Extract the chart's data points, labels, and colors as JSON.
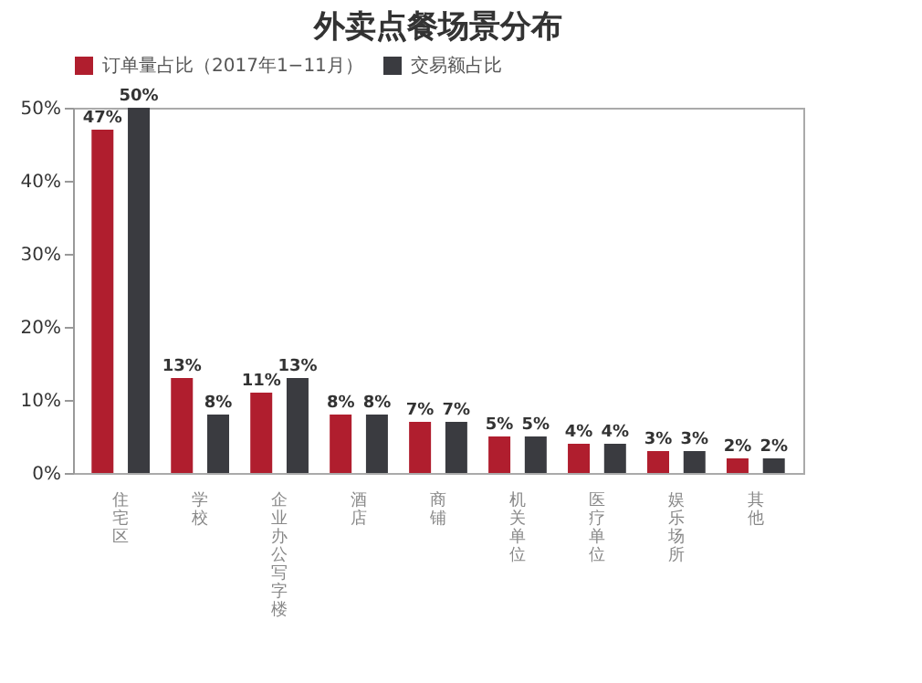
{
  "chart_data": {
    "type": "bar",
    "title": "外卖点餐场景分布",
    "categories": [
      "住宅区",
      "学校",
      "企业办公写字楼",
      "酒店",
      "商铺",
      "机关单位",
      "医疗单位",
      "娱乐场所",
      "其他"
    ],
    "series": [
      {
        "name": "订单量占比（2017年1−11月）",
        "color": "#b01e2e",
        "values": [
          47,
          13,
          11,
          8,
          7,
          5,
          4,
          3,
          2
        ],
        "value_labels": [
          "47%",
          "13%",
          "11%",
          "8%",
          "7%",
          "5%",
          "4%",
          "3%",
          "2%"
        ]
      },
      {
        "name": "交易额占比",
        "color": "#3a3b40",
        "values": [
          50,
          8,
          13,
          8,
          7,
          5,
          4,
          3,
          2
        ],
        "value_labels": [
          "50%",
          "8%",
          "13%",
          "8%",
          "7%",
          "5%",
          "4%",
          "3%",
          "2%"
        ]
      }
    ],
    "ylim": [
      0,
      50
    ],
    "yticks": [
      {
        "value": 0,
        "label": "0%"
      },
      {
        "value": 10,
        "label": "10%"
      },
      {
        "value": 20,
        "label": "20%"
      },
      {
        "value": 30,
        "label": "30%"
      },
      {
        "value": 40,
        "label": "40%"
      },
      {
        "value": 50,
        "label": "50%"
      }
    ],
    "grid": false,
    "legend": "top"
  }
}
